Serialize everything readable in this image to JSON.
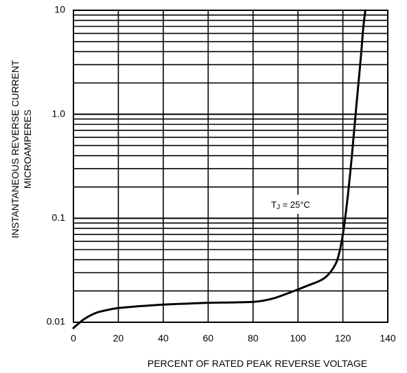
{
  "chart_data": {
    "type": "line",
    "xlabel": "PERCENT OF RATED PEAK REVERSE VOLTAGE",
    "ylabel_lines": [
      "INSTANTANEOUS REVERSE CURRENT",
      "MICROAMPERES"
    ],
    "x_ticks": [
      "0",
      "20",
      "40",
      "60",
      "80",
      "100",
      "120",
      "140"
    ],
    "x_tick_values": [
      0,
      20,
      40,
      60,
      80,
      100,
      120,
      140
    ],
    "y_ticks": [
      "0.01",
      "0.1",
      "1.0",
      "10"
    ],
    "y_tick_values": [
      0.01,
      0.1,
      1.0,
      10
    ],
    "xlim": [
      0,
      140
    ],
    "ylim": [
      0.01,
      10
    ],
    "y_scale": "log",
    "grid": true,
    "annotation": {
      "prefix": "T",
      "subscript": "J",
      "suffix": " = 25°C"
    },
    "series": [
      {
        "x": [
          0,
          2,
          5,
          10,
          15,
          20,
          30,
          40,
          50,
          60,
          70,
          80,
          85,
          90,
          95,
          100,
          105,
          110,
          113,
          116,
          118,
          120,
          122,
          124,
          126,
          128,
          129,
          130
        ],
        "y": [
          0.0088,
          0.0096,
          0.0108,
          0.0123,
          0.0131,
          0.0137,
          0.0143,
          0.0148,
          0.0151,
          0.0154,
          0.0155,
          0.0157,
          0.0162,
          0.0172,
          0.0188,
          0.0207,
          0.0228,
          0.0252,
          0.028,
          0.034,
          0.043,
          0.07,
          0.15,
          0.4,
          1.2,
          3.5,
          6.5,
          10
        ]
      }
    ],
    "colors": {
      "line": "#000000",
      "grid": "#000000",
      "background": "#ffffff"
    }
  }
}
